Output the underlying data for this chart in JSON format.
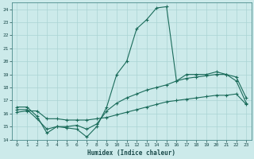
{
  "xlabel": "Humidex (Indice chaleur)",
  "background_color": "#cceaea",
  "grid_color": "#aad4d4",
  "line_color": "#1a6b5a",
  "xlim": [
    -0.5,
    23.5
  ],
  "ylim": [
    14,
    24.5
  ],
  "yticks": [
    14,
    15,
    16,
    17,
    18,
    19,
    20,
    21,
    22,
    23,
    24
  ],
  "xticks": [
    0,
    1,
    2,
    3,
    4,
    5,
    6,
    7,
    8,
    9,
    10,
    11,
    12,
    13,
    14,
    15,
    16,
    17,
    18,
    19,
    20,
    21,
    22,
    23
  ],
  "line1_x": [
    0,
    1,
    2,
    3,
    4,
    5,
    6,
    7,
    8,
    9,
    10,
    11,
    12,
    13,
    14,
    15,
    16,
    17,
    18,
    19,
    20,
    21,
    22,
    23
  ],
  "line1_y": [
    16.5,
    16.5,
    15.8,
    14.5,
    15.0,
    14.9,
    14.8,
    14.2,
    15.0,
    16.5,
    19.0,
    20.0,
    22.5,
    23.2,
    24.1,
    24.2,
    18.5,
    19.0,
    19.0,
    19.0,
    19.2,
    19.0,
    18.5,
    16.8
  ],
  "line2_x": [
    0,
    1,
    2,
    3,
    4,
    5,
    6,
    7,
    8,
    9,
    10,
    11,
    12,
    13,
    14,
    15,
    16,
    17,
    18,
    19,
    20,
    21,
    22,
    23
  ],
  "line2_y": [
    16.3,
    16.3,
    15.6,
    14.8,
    15.0,
    15.0,
    15.1,
    14.8,
    15.2,
    16.2,
    16.8,
    17.2,
    17.5,
    17.8,
    18.0,
    18.2,
    18.5,
    18.7,
    18.8,
    18.9,
    19.0,
    19.0,
    18.8,
    17.2
  ],
  "line3_x": [
    0,
    1,
    2,
    3,
    4,
    5,
    6,
    7,
    8,
    9,
    10,
    11,
    12,
    13,
    14,
    15,
    16,
    17,
    18,
    19,
    20,
    21,
    22,
    23
  ],
  "line3_y": [
    16.1,
    16.2,
    16.2,
    15.6,
    15.6,
    15.5,
    15.5,
    15.5,
    15.6,
    15.7,
    15.9,
    16.1,
    16.3,
    16.5,
    16.7,
    16.9,
    17.0,
    17.1,
    17.2,
    17.3,
    17.4,
    17.4,
    17.5,
    16.7
  ]
}
